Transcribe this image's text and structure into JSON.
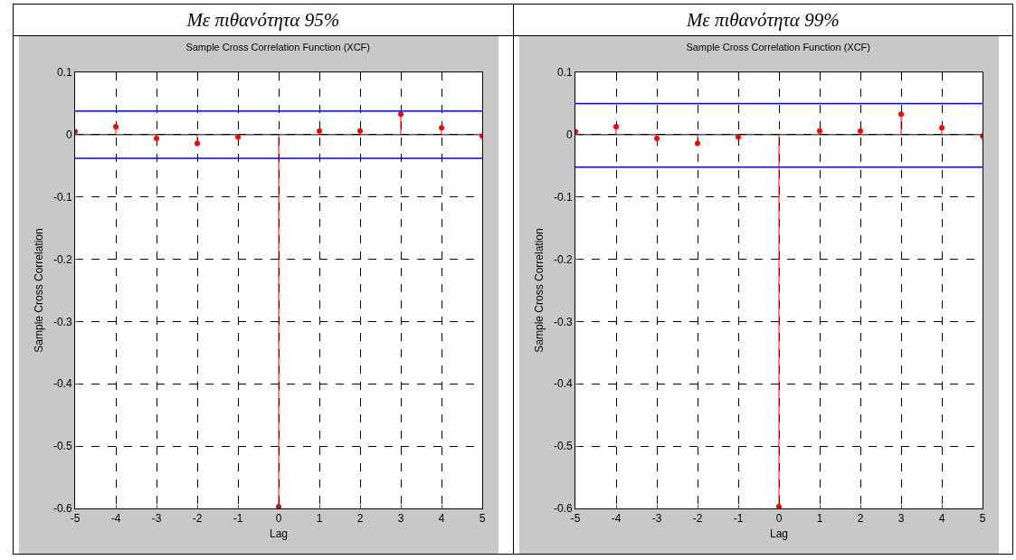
{
  "chart_data": [
    {
      "type": "lollipop",
      "subtitle": "Με πιθανότητα 95%",
      "title": "Sample Cross Correlation Function (XCF)",
      "xlabel": "Lag",
      "ylabel": "Sample Cross Correlation",
      "x": [
        -5,
        -4,
        -3,
        -2,
        -1,
        0,
        1,
        2,
        3,
        4,
        5
      ],
      "series": [
        {
          "color": "#ff0000",
          "values": [
            0.005,
            0.013,
            -0.006,
            -0.014,
            -0.004,
            -0.597,
            0.006,
            0.006,
            0.033,
            0.011,
            -0.002
          ]
        }
      ],
      "marker": "circle",
      "xlim": [
        -5,
        5
      ],
      "xticks": [
        -5,
        -4,
        -3,
        -2,
        -1,
        0,
        1,
        2,
        3,
        4,
        5
      ],
      "ylim": [
        -0.6,
        0.1
      ],
      "yticks": [
        -0.6,
        -0.5,
        -0.4,
        -0.3,
        -0.2,
        -0.1,
        0,
        0.1
      ],
      "grid": true,
      "ref_lines": [
        {
          "axis": "y",
          "value": 0.038,
          "color": "#0000ff"
        },
        {
          "axis": "y",
          "value": -0.038,
          "color": "#0000ff"
        }
      ]
    },
    {
      "type": "lollipop",
      "subtitle": "Με πιθανότητα 99%",
      "title": "Sample Cross Correlation Function (XCF)",
      "xlabel": "Lag",
      "ylabel": "Sample Cross Correlation",
      "x": [
        -5,
        -4,
        -3,
        -2,
        -1,
        0,
        1,
        2,
        3,
        4,
        5
      ],
      "series": [
        {
          "color": "#ff0000",
          "values": [
            0.005,
            0.013,
            -0.006,
            -0.014,
            -0.004,
            -0.597,
            0.006,
            0.006,
            0.033,
            0.011,
            -0.002
          ]
        }
      ],
      "marker": "circle",
      "xlim": [
        -5,
        5
      ],
      "xticks": [
        -5,
        -4,
        -3,
        -2,
        -1,
        0,
        1,
        2,
        3,
        4,
        5
      ],
      "ylim": [
        -0.6,
        0.1
      ],
      "yticks": [
        -0.6,
        -0.5,
        -0.4,
        -0.3,
        -0.2,
        -0.1,
        0,
        0.1
      ],
      "grid": true,
      "ref_lines": [
        {
          "axis": "y",
          "value": 0.05,
          "color": "#0000ff"
        },
        {
          "axis": "y",
          "value": -0.052,
          "color": "#0000ff"
        }
      ]
    }
  ]
}
